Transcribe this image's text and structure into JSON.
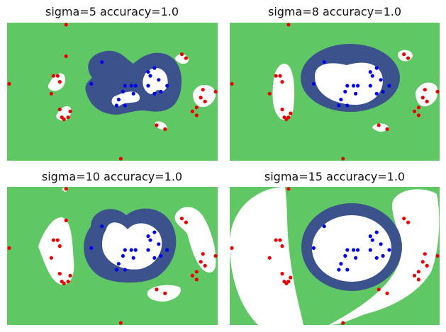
{
  "colors": {
    "green": "#5fc865",
    "navy": "#3b528c",
    "white": "#ffffff",
    "red": "#ee0000",
    "blue": "#0000ee"
  },
  "chart_data": [
    {
      "type": "scatter",
      "title": "sigma=5 accuracy=1.0",
      "xlim": [
        0,
        10
      ],
      "ylim": [
        0,
        7
      ],
      "series": [
        {
          "class": "red",
          "points": [
            [
              2.8,
              6.9
            ],
            [
              0.1,
              3.9
            ],
            [
              2.8,
              5.3
            ],
            [
              2.2,
              4.3
            ],
            [
              2.4,
              4.3
            ],
            [
              2.5,
              4.0
            ],
            [
              2.1,
              3.4
            ],
            [
              2.5,
              2.6
            ],
            [
              2.9,
              2.2
            ],
            [
              3.0,
              2.5
            ],
            [
              2.7,
              2.1
            ],
            [
              2.6,
              2.2
            ],
            [
              8.3,
              5.4
            ],
            [
              8.5,
              5.2
            ],
            [
              9.3,
              3.6
            ],
            [
              9.9,
              3.5
            ],
            [
              9.2,
              3.2
            ],
            [
              9.4,
              3.0
            ],
            [
              9.0,
              2.7
            ],
            [
              8.8,
              2.5
            ],
            [
              9.0,
              2.3
            ],
            [
              7.1,
              1.8
            ],
            [
              7.5,
              1.6
            ],
            [
              5.4,
              0.1
            ]
          ]
        },
        {
          "class": "blue",
          "points": [
            [
              4.5,
              5.0
            ],
            [
              4.0,
              3.9
            ],
            [
              5.6,
              3.8
            ],
            [
              5.9,
              3.8
            ],
            [
              6.1,
              3.8
            ],
            [
              5.5,
              3.5
            ],
            [
              6.0,
              3.4
            ],
            [
              5.3,
              3.1
            ],
            [
              5.2,
              2.8
            ],
            [
              5.6,
              2.8
            ],
            [
              6.7,
              4.5
            ],
            [
              6.8,
              4.3
            ],
            [
              7.0,
              4.7
            ],
            [
              7.2,
              4.1
            ],
            [
              7.3,
              3.5
            ],
            [
              7.6,
              3.8
            ],
            [
              7.0,
              3.4
            ],
            [
              6.7,
              3.8
            ]
          ]
        }
      ]
    },
    {
      "type": "scatter",
      "title": "sigma=8 accuracy=1.0",
      "xlim": [
        0,
        10
      ],
      "ylim": [
        0,
        7
      ],
      "series": [
        {
          "class": "red",
          "points": [
            [
              2.8,
              6.9
            ],
            [
              0.1,
              3.9
            ],
            [
              2.2,
              4.3
            ],
            [
              2.4,
              4.3
            ],
            [
              2.5,
              4.0
            ],
            [
              1.9,
              3.4
            ],
            [
              2.5,
              2.6
            ],
            [
              2.8,
              2.2
            ],
            [
              2.9,
              2.4
            ],
            [
              2.7,
              2.1
            ],
            [
              2.6,
              2.2
            ],
            [
              8.3,
              5.4
            ],
            [
              8.5,
              5.2
            ],
            [
              9.3,
              3.6
            ],
            [
              9.9,
              3.5
            ],
            [
              9.2,
              3.2
            ],
            [
              9.4,
              3.0
            ],
            [
              9.0,
              2.7
            ],
            [
              8.8,
              2.5
            ],
            [
              9.0,
              2.3
            ],
            [
              7.1,
              1.8
            ],
            [
              7.5,
              1.6
            ],
            [
              5.4,
              0.1
            ]
          ]
        },
        {
          "class": "blue",
          "points": [
            [
              4.5,
              5.0
            ],
            [
              4.0,
              3.9
            ],
            [
              5.6,
              3.8
            ],
            [
              5.9,
              3.8
            ],
            [
              6.1,
              3.8
            ],
            [
              5.5,
              3.5
            ],
            [
              6.0,
              3.4
            ],
            [
              5.3,
              3.1
            ],
            [
              5.2,
              2.8
            ],
            [
              5.6,
              2.8
            ],
            [
              6.7,
              4.5
            ],
            [
              6.8,
              4.3
            ],
            [
              7.0,
              4.7
            ],
            [
              7.2,
              4.1
            ],
            [
              7.3,
              3.5
            ],
            [
              7.6,
              3.8
            ],
            [
              7.0,
              3.4
            ],
            [
              6.7,
              3.8
            ]
          ]
        }
      ]
    },
    {
      "type": "scatter",
      "title": "sigma=10 accuracy=1.0",
      "xlim": [
        0,
        10
      ],
      "ylim": [
        0,
        7
      ],
      "series": [
        {
          "class": "red",
          "points": [
            [
              2.8,
              6.9
            ],
            [
              0.1,
              3.9
            ],
            [
              2.8,
              5.3
            ],
            [
              2.2,
              4.3
            ],
            [
              2.4,
              4.3
            ],
            [
              2.5,
              4.0
            ],
            [
              2.1,
              3.4
            ],
            [
              2.5,
              2.6
            ],
            [
              2.9,
              2.2
            ],
            [
              3.0,
              2.5
            ],
            [
              2.7,
              2.1
            ],
            [
              2.6,
              2.2
            ],
            [
              8.3,
              5.4
            ],
            [
              8.5,
              5.2
            ],
            [
              9.3,
              3.6
            ],
            [
              9.9,
              3.5
            ],
            [
              9.2,
              3.2
            ],
            [
              9.4,
              3.0
            ],
            [
              9.0,
              2.7
            ],
            [
              8.8,
              2.5
            ],
            [
              9.0,
              2.3
            ],
            [
              7.1,
              1.8
            ],
            [
              7.5,
              1.6
            ],
            [
              5.4,
              0.1
            ]
          ]
        },
        {
          "class": "blue",
          "points": [
            [
              4.5,
              5.0
            ],
            [
              4.0,
              3.9
            ],
            [
              5.6,
              3.8
            ],
            [
              5.9,
              3.8
            ],
            [
              6.1,
              3.8
            ],
            [
              5.5,
              3.5
            ],
            [
              6.0,
              3.4
            ],
            [
              5.3,
              3.1
            ],
            [
              5.2,
              2.8
            ],
            [
              5.6,
              2.8
            ],
            [
              6.7,
              4.5
            ],
            [
              6.8,
              4.3
            ],
            [
              7.0,
              4.7
            ],
            [
              7.2,
              4.1
            ],
            [
              7.3,
              3.5
            ],
            [
              7.6,
              3.8
            ],
            [
              7.0,
              3.4
            ],
            [
              6.7,
              3.8
            ]
          ]
        }
      ]
    },
    {
      "type": "scatter",
      "title": "sigma=15 accuracy=1.0",
      "xlim": [
        0,
        10
      ],
      "ylim": [
        0,
        7
      ],
      "series": [
        {
          "class": "red",
          "points": [
            [
              2.8,
              6.9
            ],
            [
              0.1,
              3.9
            ],
            [
              2.2,
              4.3
            ],
            [
              2.4,
              4.3
            ],
            [
              2.5,
              4.0
            ],
            [
              1.9,
              3.4
            ],
            [
              2.5,
              2.6
            ],
            [
              2.8,
              2.2
            ],
            [
              2.9,
              2.4
            ],
            [
              2.7,
              2.1
            ],
            [
              2.6,
              2.2
            ],
            [
              8.3,
              5.4
            ],
            [
              8.5,
              5.2
            ],
            [
              9.3,
              3.6
            ],
            [
              9.9,
              3.5
            ],
            [
              9.2,
              3.2
            ],
            [
              9.4,
              3.0
            ],
            [
              9.0,
              2.7
            ],
            [
              8.8,
              2.5
            ],
            [
              9.0,
              2.3
            ],
            [
              7.1,
              1.8
            ],
            [
              7.5,
              1.6
            ],
            [
              5.4,
              0.1
            ]
          ]
        },
        {
          "class": "blue",
          "points": [
            [
              4.5,
              5.0
            ],
            [
              4.0,
              3.9
            ],
            [
              5.6,
              3.8
            ],
            [
              5.9,
              3.8
            ],
            [
              6.1,
              3.8
            ],
            [
              5.5,
              3.5
            ],
            [
              6.0,
              3.4
            ],
            [
              5.3,
              3.1
            ],
            [
              5.2,
              2.8
            ],
            [
              5.6,
              2.8
            ],
            [
              6.7,
              4.5
            ],
            [
              6.8,
              4.3
            ],
            [
              7.0,
              4.7
            ],
            [
              7.2,
              4.1
            ],
            [
              7.3,
              3.5
            ],
            [
              7.6,
              3.8
            ],
            [
              7.0,
              3.4
            ],
            [
              6.7,
              3.8
            ]
          ]
        }
      ]
    }
  ]
}
